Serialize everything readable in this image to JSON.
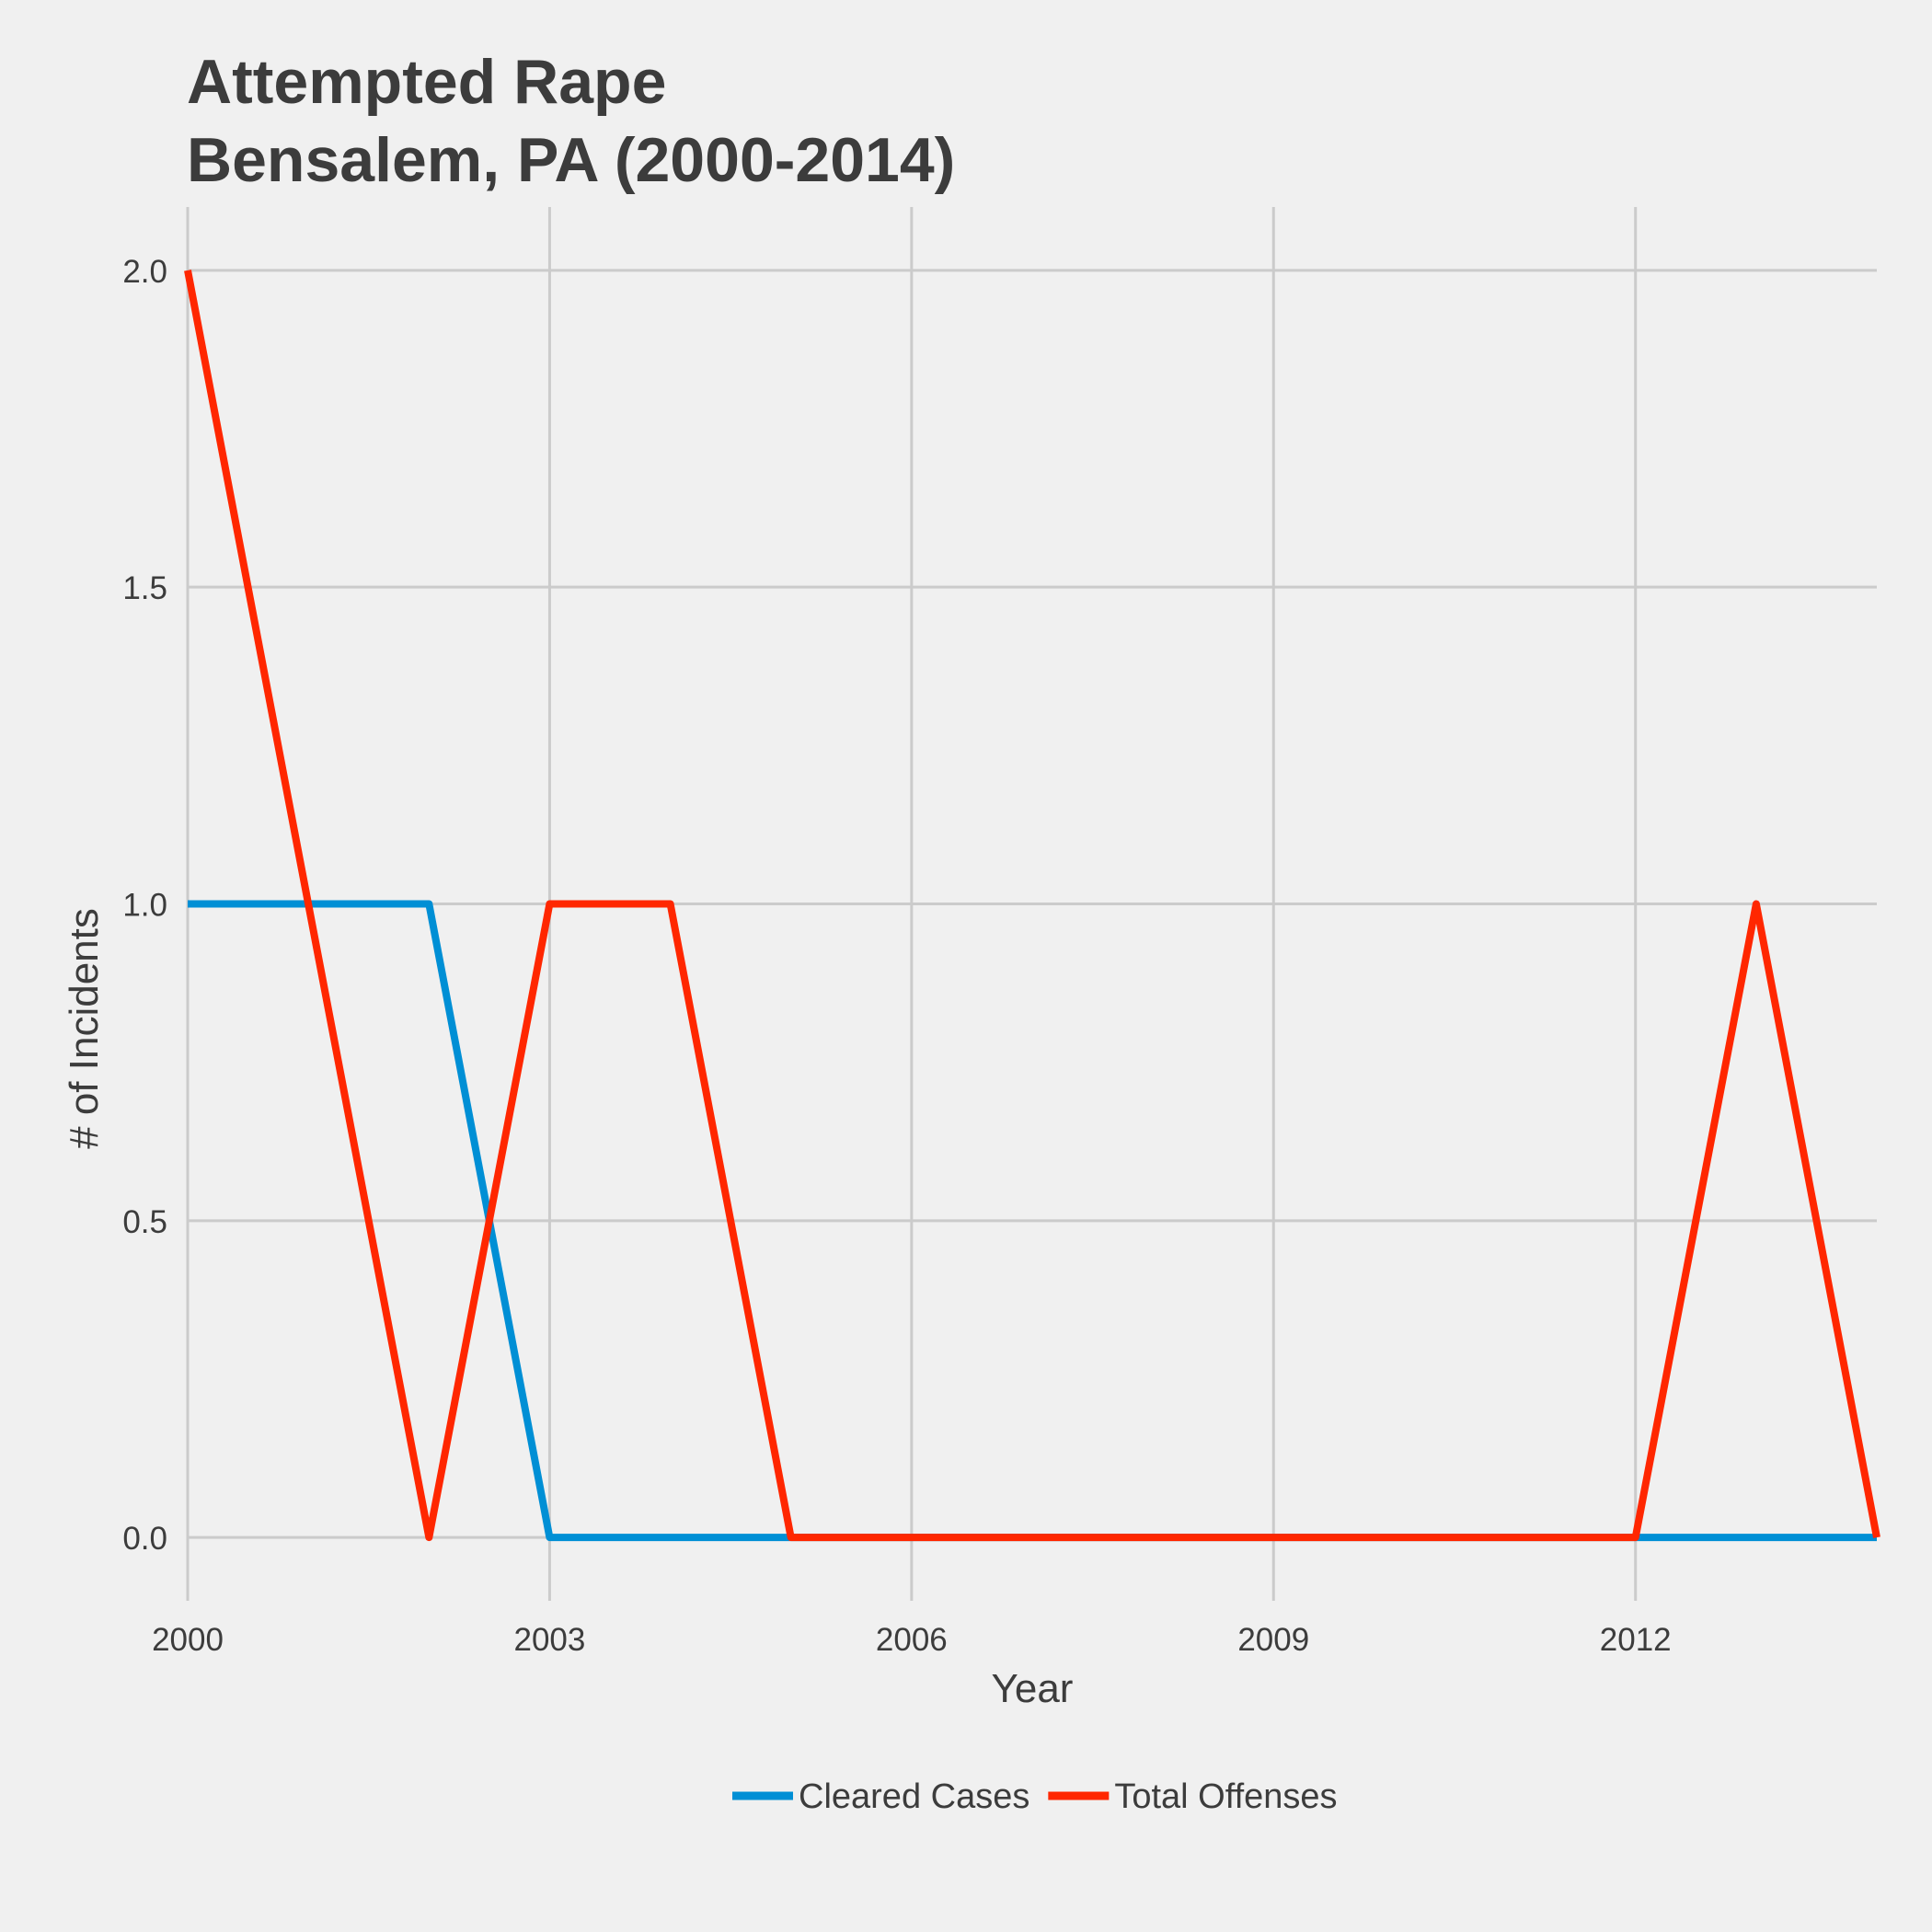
{
  "chart_data": {
    "type": "line",
    "title": "Attempted Rape",
    "subtitle": "Bensalem, PA (2000-2014)",
    "xlabel": "Year",
    "ylabel": "# of Incidents",
    "x": [
      2000,
      2001,
      2002,
      2003,
      2004,
      2005,
      2006,
      2007,
      2008,
      2009,
      2010,
      2011,
      2012,
      2013,
      2014
    ],
    "xlim": [
      2000,
      2014
    ],
    "ylim": [
      -0.1,
      2.1
    ],
    "x_ticks": [
      2000,
      2003,
      2006,
      2009,
      2012
    ],
    "x_tick_labels": [
      "2000",
      "2003",
      "2006",
      "2009",
      "2012"
    ],
    "y_ticks": [
      0,
      0.5,
      1,
      1.5,
      2
    ],
    "y_tick_labels": [
      "0.0",
      "0.5",
      "1.0",
      "1.5",
      "2.0"
    ],
    "grid": true,
    "legend_position": "bottom",
    "series": [
      {
        "name": "Cleared Cases",
        "color": "#008fd5",
        "values": [
          1,
          1,
          1,
          0,
          0,
          0,
          0,
          0,
          0,
          0,
          0,
          0,
          0,
          0,
          0
        ]
      },
      {
        "name": "Total Offenses",
        "color": "#ff2700",
        "values": [
          2,
          1,
          0,
          1,
          1,
          0,
          0,
          0,
          0,
          0,
          0,
          0,
          0,
          1,
          0
        ]
      }
    ]
  }
}
